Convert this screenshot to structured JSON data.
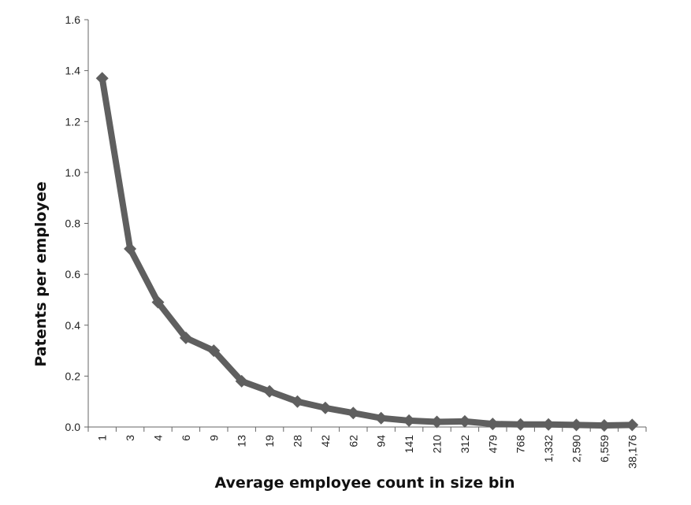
{
  "chart_data": {
    "type": "line",
    "title": "",
    "xlabel": "Average employee count in size bin",
    "ylabel": "Patents per employee",
    "categories": [
      "1",
      "3",
      "4",
      "6",
      "9",
      "13",
      "19",
      "28",
      "42",
      "62",
      "94",
      "141",
      "210",
      "312",
      "479",
      "768",
      "1,332",
      "2,590",
      "6,559",
      "38,176"
    ],
    "series": [
      {
        "values": [
          1.37,
          0.7,
          0.49,
          0.35,
          0.3,
          0.18,
          0.14,
          0.1,
          0.075,
          0.055,
          0.035,
          0.025,
          0.02,
          0.022,
          0.012,
          0.01,
          0.01,
          0.008,
          0.006,
          0.008
        ]
      }
    ],
    "ylim": [
      0,
      1.6
    ],
    "yticks": [
      "0.0",
      "0.2",
      "0.4",
      "0.6",
      "0.8",
      "1.0",
      "1.2",
      "1.4",
      "1.6"
    ],
    "grid": false,
    "legend": "none",
    "colors": {
      "line": "#5f5f5f",
      "marker": "#5f5f5f",
      "axis": "#666666"
    }
  }
}
